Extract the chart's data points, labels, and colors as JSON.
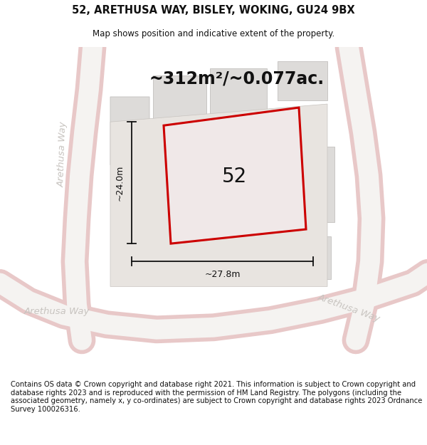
{
  "title": "52, ARETHUSA WAY, BISLEY, WOKING, GU24 9BX",
  "subtitle": "Map shows position and indicative extent of the property.",
  "area_label": "~312m²/~0.077ac.",
  "number_label": "52",
  "dim_width": "~27.8m",
  "dim_height": "~24.0m",
  "footer": "Contains OS data © Crown copyright and database right 2021. This information is subject to Crown copyright and database rights 2023 and is reproduced with the permission of HM Land Registry. The polygons (including the associated geometry, namely x, y co-ordinates) are subject to Crown copyright and database rights 2023 Ordnance Survey 100026316.",
  "bg_color": "#f0eeec",
  "map_bg": "#f0eeec",
  "road_fill": "#f5f3f1",
  "road_edge": "#e8c8c8",
  "road_center": "#f0d0d0",
  "block_color": "#dddbd9",
  "block_edge": "#c8c6c4",
  "highlight_color": "#cc0000",
  "highlight_fill": "#f0e8e8",
  "text_road": "#c8c4c0",
  "title_fontsize": 10.5,
  "subtitle_fontsize": 8.5,
  "area_fontsize": 17,
  "number_fontsize": 20,
  "dim_fontsize": 9,
  "footer_fontsize": 7.2,
  "road_label_fontsize": 9.5
}
